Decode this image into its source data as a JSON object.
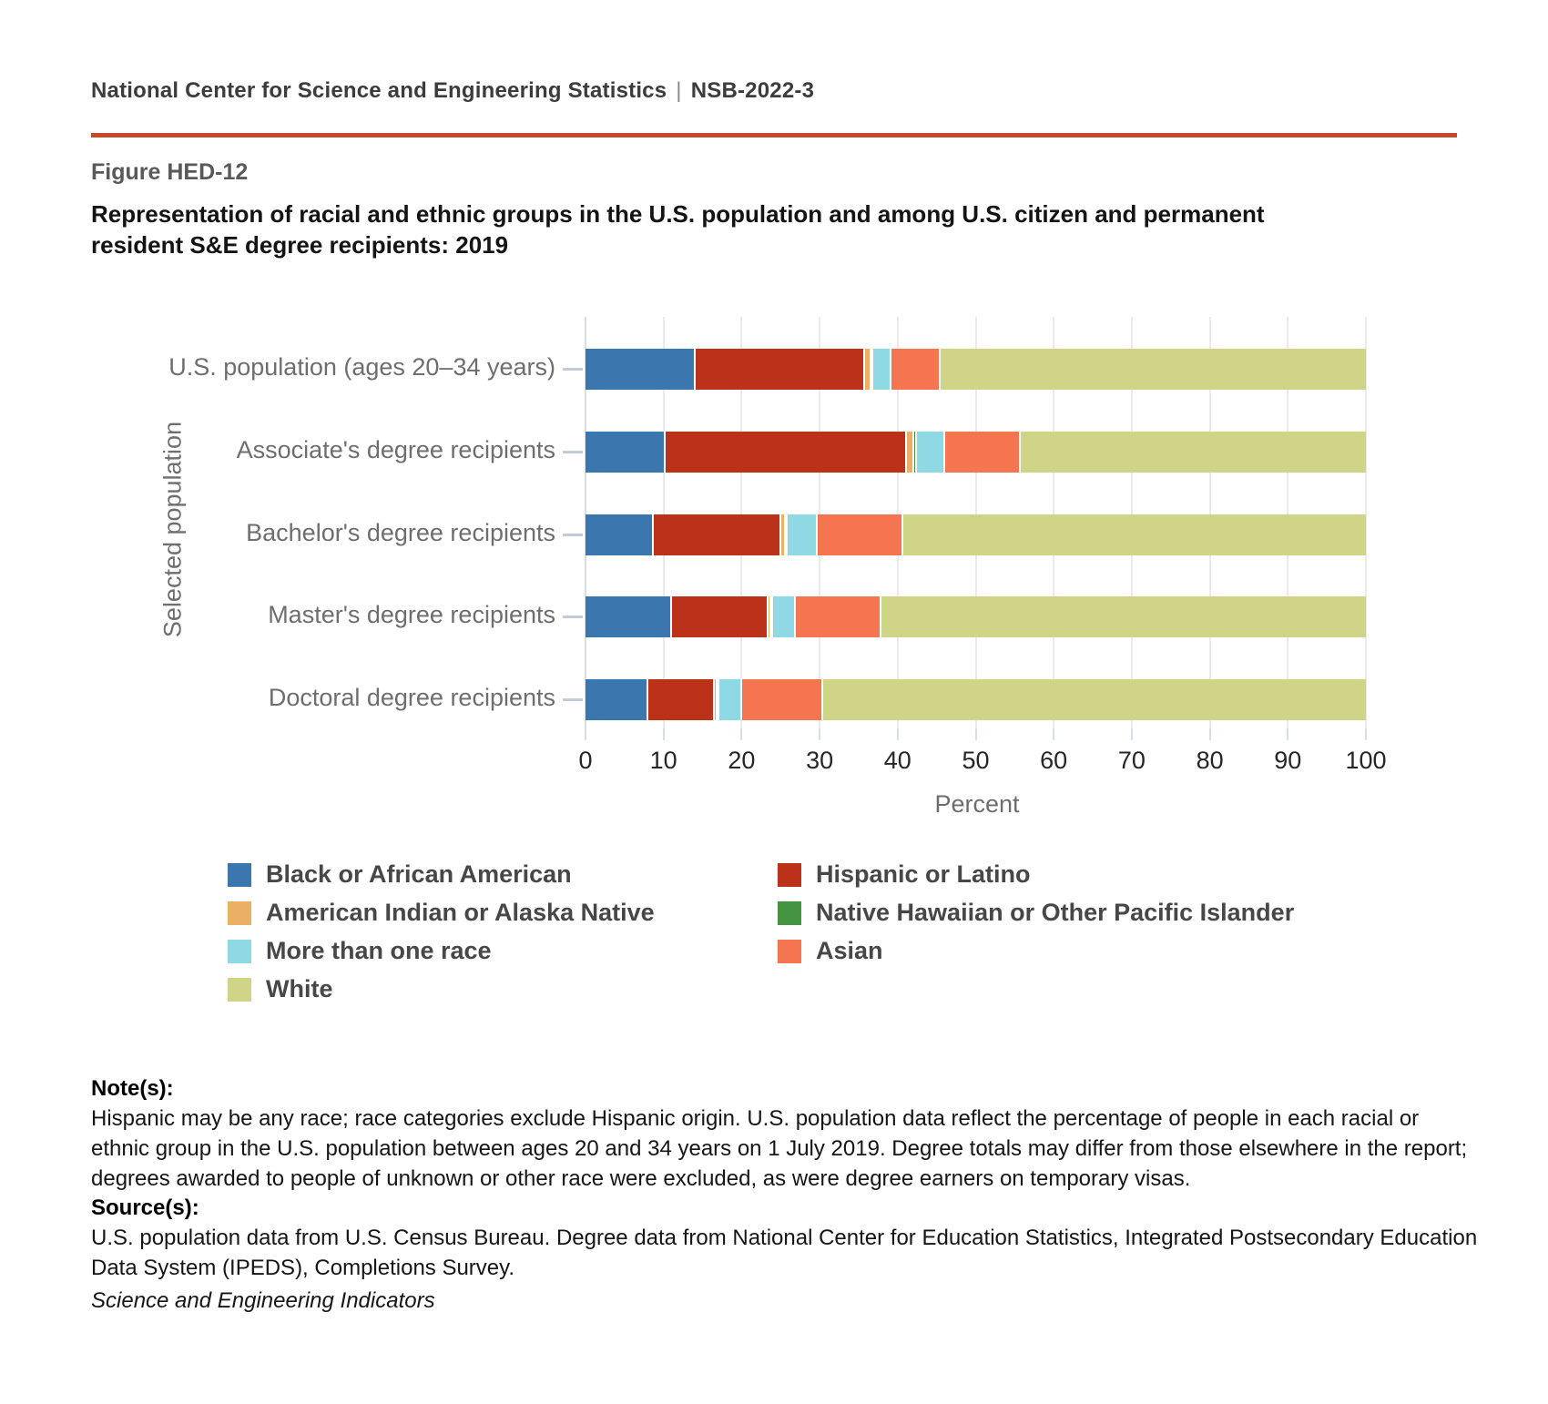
{
  "header": {
    "org": "National Center for Science and Engineering Statistics",
    "separator": "|",
    "doc_id": "NSB-2022-3"
  },
  "figure": {
    "label": "Figure HED-12",
    "title": "Representation of racial and ethnic groups in the U.S. population and among U.S. citizen and permanent resident S&E degree recipients: 2019"
  },
  "chart_data": {
    "type": "bar",
    "orientation": "horizontal",
    "stacked": true,
    "categories": [
      "U.S. population (ages 20–34 years)",
      "Associate's degree recipients",
      "Bachelor's degree recipients",
      "Master's degree recipients",
      "Doctoral degree recipients"
    ],
    "series": [
      {
        "name": "Black or African American",
        "color": "#3b76af",
        "values": [
          13.9,
          10.0,
          8.5,
          10.9,
          7.8
        ]
      },
      {
        "name": "Hispanic or Latino",
        "color": "#bb3119",
        "values": [
          21.7,
          30.9,
          16.4,
          12.3,
          8.6
        ]
      },
      {
        "name": "American Indian or Alaska Native",
        "color": "#ebb064",
        "values": [
          0.8,
          1.0,
          0.5,
          0.4,
          0.3
        ]
      },
      {
        "name": "Native Hawaiian or Other Pacific Islander",
        "color": "#459441",
        "values": [
          0.2,
          0.4,
          0.2,
          0.2,
          0.1
        ]
      },
      {
        "name": "More than one race",
        "color": "#8fd9e4",
        "values": [
          2.3,
          3.6,
          3.9,
          2.9,
          2.9
        ]
      },
      {
        "name": "Asian",
        "color": "#f4754f",
        "values": [
          6.3,
          9.7,
          11.0,
          11.0,
          10.4
        ]
      },
      {
        "name": "White",
        "color": "#cfd487",
        "values": [
          54.8,
          44.4,
          59.5,
          62.3,
          69.9
        ]
      }
    ],
    "xlabel": "Percent",
    "ylabel": "Selected population",
    "xlim": [
      0,
      100
    ],
    "xticks": [
      0,
      10,
      20,
      30,
      40,
      50,
      60,
      70,
      80,
      90,
      100
    ],
    "grid": true,
    "legend_position": "bottom"
  },
  "notes": {
    "heading": "Note(s):",
    "body": "Hispanic may be any race; race categories exclude Hispanic origin. U.S. population data reflect the percentage of people in each racial or ethnic group in the U.S. population between ages 20 and 34 years on 1 July 2019. Degree totals may differ from those elsewhere in the report; degrees awarded to people of unknown or other race were excluded, as were degree earners on temporary visas."
  },
  "sources": {
    "heading": "Source(s):",
    "body": "U.S. population data from U.S. Census Bureau. Degree data from National Center for Education Statistics, Integrated Postsecondary Education Data System (IPEDS), Completions Survey."
  },
  "footer": {
    "text": "Science and Engineering Indicators"
  }
}
